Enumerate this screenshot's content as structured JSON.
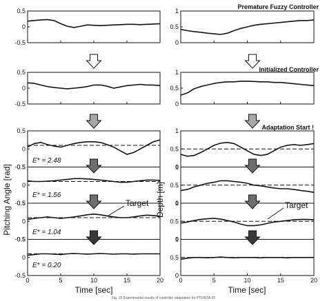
{
  "figure": {
    "caption": "Fig. 10   Experimental results of controller adaptation for PTEROA 50"
  },
  "annotations": {
    "premature": "Premature Fuzzy Controller",
    "initialized": "Initialized Controller",
    "adaptation": "Adaptation Start !",
    "target_left": "Target",
    "target_right": "Target"
  },
  "axes": {
    "xlabel": "Time [sec]",
    "ylabel_left": "Pitching Angle [rad]",
    "ylabel_right": "Depth [m]",
    "x_ticks": [
      "0",
      "5",
      "10",
      "15",
      "20"
    ],
    "left_y_ticks": [
      "0.5",
      "0",
      "-0.5"
    ],
    "right_y_ticks": [
      "1",
      "0.5",
      "0"
    ]
  },
  "errors": [
    {
      "label": "E* = 2.48"
    },
    {
      "label": "E* = 1.56"
    },
    {
      "label": "E* = 1.04"
    },
    {
      "label": "E* = 0.20"
    }
  ],
  "colors": {
    "arrow_hollow": "#ffffff",
    "arrow_light": "#a8a8a8",
    "arrow_mid": "#6e6e6e",
    "arrow_dark": "#3a3a3a",
    "trace": "#111111"
  },
  "chart_data": [
    {
      "type": "line",
      "title": "",
      "xlabel": "",
      "ylabel": "",
      "xlim": [
        0,
        20
      ],
      "ylim": [
        -0.5,
        0.5
      ],
      "series": [
        {
          "x": [
            0,
            1,
            2,
            3,
            4,
            5,
            6,
            7,
            8,
            9,
            10,
            11,
            12,
            13,
            14,
            15,
            16,
            17,
            18,
            19,
            20
          ],
          "y": [
            0.18,
            0.2,
            0.22,
            0.23,
            0.2,
            0.1,
            0.02,
            -0.02,
            0.02,
            0.06,
            0.05,
            0.04,
            0.05,
            0.06,
            0.07,
            0.08,
            0.08,
            0.07,
            0.08,
            0.09,
            0.1
          ]
        }
      ]
    },
    {
      "type": "line",
      "title": "",
      "xlabel": "",
      "ylabel": "",
      "xlim": [
        0,
        20
      ],
      "ylim": [
        0,
        1
      ],
      "series": [
        {
          "x": [
            0,
            1,
            2,
            3,
            4,
            5,
            6,
            7,
            8,
            9,
            10,
            11,
            12,
            13,
            14,
            15,
            16,
            17,
            18,
            19,
            20
          ],
          "y": [
            0.42,
            0.38,
            0.35,
            0.33,
            0.3,
            0.28,
            0.26,
            0.3,
            0.38,
            0.45,
            0.5,
            0.55,
            0.58,
            0.6,
            0.62,
            0.64,
            0.66,
            0.68,
            0.7,
            0.7,
            0.72
          ]
        }
      ]
    },
    {
      "type": "line",
      "title": "",
      "xlabel": "",
      "ylabel": "",
      "xlim": [
        0,
        20
      ],
      "ylim": [
        -0.5,
        0.5
      ],
      "series": [
        {
          "x": [
            0,
            1,
            2,
            3,
            4,
            5,
            6,
            7,
            8,
            9,
            10,
            11,
            12,
            13,
            14,
            15,
            16,
            17,
            18,
            19,
            20
          ],
          "y": [
            0.17,
            0.15,
            0.1,
            0.05,
            0.02,
            0.0,
            -0.02,
            0.0,
            0.02,
            0.05,
            0.1,
            0.1,
            0.06,
            0.0,
            0.04,
            0.08,
            0.1,
            0.12,
            0.1,
            0.1,
            0.08
          ]
        }
      ]
    },
    {
      "type": "line",
      "title": "",
      "xlabel": "",
      "ylabel": "",
      "xlim": [
        0,
        20
      ],
      "ylim": [
        0,
        1
      ],
      "series": [
        {
          "x": [
            0,
            1,
            2,
            3,
            4,
            5,
            6,
            7,
            8,
            9,
            10,
            11,
            12,
            13,
            14,
            15,
            16,
            17,
            18,
            19,
            20
          ],
          "y": [
            0.28,
            0.35,
            0.48,
            0.55,
            0.6,
            0.65,
            0.68,
            0.7,
            0.7,
            0.72,
            0.72,
            0.71,
            0.7,
            0.7,
            0.68,
            0.68,
            0.66,
            0.64,
            0.62,
            0.6,
            0.58
          ]
        }
      ]
    },
    {
      "type": "line",
      "title": "",
      "xlabel": "",
      "ylabel": "",
      "xlim": [
        0,
        20
      ],
      "ylim": [
        -0.5,
        0.5
      ],
      "series": [
        {
          "x": [
            0,
            1,
            2,
            3,
            4,
            5,
            6,
            7,
            8,
            9,
            10,
            11,
            12,
            13,
            14,
            15,
            16,
            17,
            18,
            19,
            20
          ],
          "y": [
            0.05,
            0.15,
            0.18,
            0.12,
            0.08,
            0.05,
            0.1,
            0.15,
            0.18,
            0.2,
            0.2,
            0.18,
            0.12,
            0.05,
            -0.05,
            -0.15,
            -0.1,
            0.0,
            0.1,
            0.2,
            0.25
          ]
        },
        {
          "x": [
            0,
            20
          ],
          "y": [
            0.1,
            0.1
          ]
        },
        {
          "x": [
            0,
            1,
            2,
            3,
            4,
            5,
            6,
            7,
            8,
            9,
            10,
            11,
            12,
            13,
            14,
            15,
            16,
            17,
            18,
            19,
            20
          ],
          "y": [
            0.12,
            0.1,
            0.1,
            0.11,
            0.12,
            0.14,
            0.16,
            0.18,
            0.18,
            0.17,
            0.16,
            0.14,
            0.12,
            0.1,
            0.08,
            0.08,
            0.1,
            0.12,
            0.14,
            0.14,
            0.13
          ]
        },
        {
          "x": [
            0,
            20
          ],
          "y": [
            0.1,
            0.1
          ]
        },
        {
          "x": [
            0,
            1,
            2,
            3,
            4,
            5,
            6,
            7,
            8,
            9,
            10,
            11,
            12,
            13,
            14,
            15,
            16,
            17,
            18,
            19,
            20
          ],
          "y": [
            0.05,
            0.08,
            0.1,
            0.12,
            0.1,
            0.08,
            0.1,
            0.12,
            0.15,
            0.18,
            0.2,
            0.18,
            0.15,
            0.12,
            0.1,
            0.1,
            0.12,
            0.15,
            0.17,
            0.16,
            0.14
          ]
        },
        {
          "x": [
            0,
            20
          ],
          "y": [
            0.1,
            0.1
          ]
        },
        {
          "x": [
            0,
            1,
            2,
            3,
            4,
            5,
            6,
            7,
            8,
            9,
            10,
            11,
            12,
            13,
            14,
            15,
            16,
            17,
            18,
            19,
            20
          ],
          "y": [
            0.06,
            0.08,
            0.1,
            0.1,
            0.09,
            0.08,
            0.1,
            0.11,
            0.1,
            0.09,
            0.1,
            0.11,
            0.1,
            0.09,
            0.1,
            0.1,
            0.09,
            0.1,
            0.1,
            0.1,
            0.1
          ]
        },
        {
          "x": [
            0,
            20
          ],
          "y": [
            0.1,
            0.1
          ]
        }
      ]
    },
    {
      "type": "line",
      "title": "",
      "xlabel": "",
      "ylabel": "",
      "xlim": [
        0,
        20
      ],
      "ylim": [
        0,
        1
      ],
      "series": [
        {
          "x": [
            0,
            1,
            2,
            3,
            4,
            5,
            6,
            7,
            8,
            9,
            10,
            11,
            12,
            13,
            14,
            15,
            16,
            17,
            18,
            19,
            20
          ],
          "y": [
            0.35,
            0.3,
            0.32,
            0.4,
            0.5,
            0.6,
            0.66,
            0.68,
            0.65,
            0.55,
            0.45,
            0.35,
            0.32,
            0.35,
            0.45,
            0.55,
            0.6,
            0.62,
            0.6,
            0.62,
            0.65
          ]
        },
        {
          "x": [
            0,
            20
          ],
          "y": [
            0.5,
            0.5
          ]
        },
        {
          "x": [
            0,
            1,
            2,
            3,
            4,
            5,
            6,
            7,
            8,
            9,
            10,
            11,
            12,
            13,
            14,
            15,
            16,
            17,
            18,
            19,
            20
          ],
          "y": [
            0.35,
            0.38,
            0.45,
            0.5,
            0.55,
            0.58,
            0.62,
            0.62,
            0.6,
            0.58,
            0.55,
            0.5,
            0.48,
            0.45,
            0.42,
            0.4,
            0.4,
            0.38,
            0.35,
            0.33,
            0.3
          ]
        },
        {
          "x": [
            0,
            20
          ],
          "y": [
            0.5,
            0.5
          ]
        },
        {
          "x": [
            0,
            1,
            2,
            3,
            4,
            5,
            6,
            7,
            8,
            9,
            10,
            11,
            12,
            13,
            14,
            15,
            16,
            17,
            18,
            19,
            20
          ],
          "y": [
            0.45,
            0.48,
            0.52,
            0.55,
            0.57,
            0.58,
            0.56,
            0.52,
            0.48,
            0.42,
            0.38,
            0.38,
            0.4,
            0.44,
            0.48,
            0.5,
            0.52,
            0.54,
            0.55,
            0.55,
            0.54
          ]
        },
        {
          "x": [
            0,
            20
          ],
          "y": [
            0.5,
            0.5
          ]
        },
        {
          "x": [
            0,
            1,
            2,
            3,
            4,
            5,
            6,
            7,
            8,
            9,
            10,
            11,
            12,
            13,
            14,
            15,
            16,
            17,
            18,
            19,
            20
          ],
          "y": [
            0.45,
            0.48,
            0.5,
            0.5,
            0.49,
            0.5,
            0.51,
            0.5,
            0.49,
            0.5,
            0.5,
            0.5,
            0.49,
            0.5,
            0.5,
            0.5,
            0.49,
            0.5,
            0.5,
            0.5,
            0.5
          ]
        },
        {
          "x": [
            0,
            20
          ],
          "y": [
            0.5,
            0.5
          ]
        }
      ]
    }
  ]
}
